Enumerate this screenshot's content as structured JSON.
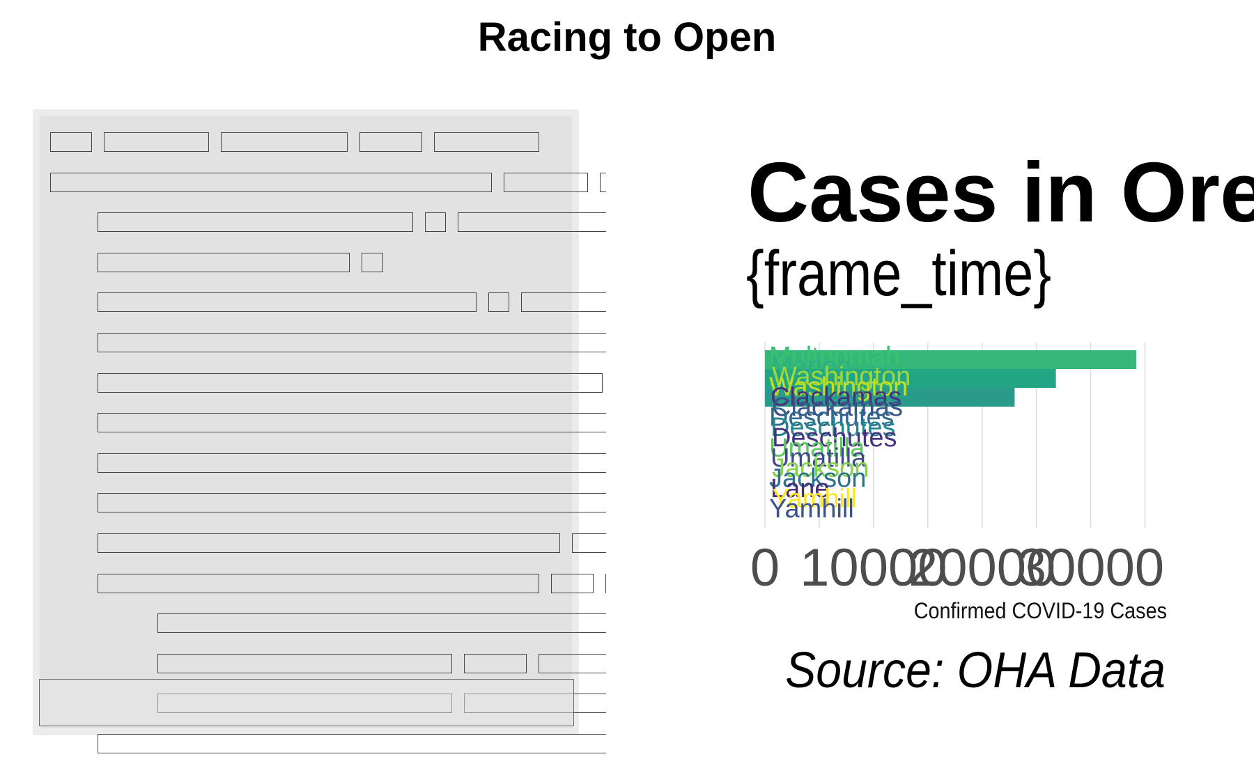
{
  "page_title": "Racing to Open",
  "code_panel": {
    "lines": [
      {
        "indent": 0,
        "tokens": [
          2,
          5,
          6,
          3,
          5
        ]
      },
      {
        "indent": 0,
        "tokens": [
          21,
          4,
          21
        ]
      },
      {
        "indent": 1,
        "tokens": [
          15,
          1,
          8,
          1,
          1,
          3
        ]
      },
      {
        "indent": 1,
        "tokens": [
          12,
          1
        ]
      },
      {
        "indent": 1,
        "tokens": [
          18,
          1,
          9,
          1
        ]
      },
      {
        "indent": 1,
        "tokens": [
          36
        ]
      },
      {
        "indent": 1,
        "tokens": [
          24,
          1
        ]
      },
      {
        "indent": 1,
        "tokens": [
          27,
          1
        ]
      },
      {
        "indent": 1,
        "tokens": [
          27,
          1
        ]
      },
      {
        "indent": 1,
        "tokens": [
          29,
          1
        ]
      },
      {
        "indent": 1,
        "tokens": [
          22,
          11
        ]
      },
      {
        "indent": 1,
        "tokens": [
          21,
          2,
          6,
          1
        ]
      },
      {
        "indent": 2,
        "tokens": [
          32
        ]
      },
      {
        "indent": 2,
        "tokens": [
          14,
          3,
          5
        ]
      },
      {
        "indent": 2,
        "tokens": [
          14,
          10,
          3
        ]
      },
      {
        "indent": 1,
        "tokens": [
          36
        ]
      }
    ]
  },
  "chart_data": {
    "type": "bar",
    "orientation": "horizontal",
    "title": "Cases in Oreg",
    "subtitle": "{frame_time}",
    "xlabel": "Confirmed COVID-19 Cases",
    "caption": "Source: OHA Data",
    "xlim": [
      0,
      36000
    ],
    "xticks": [
      0,
      10000,
      20000,
      30000
    ],
    "xtick_labels": [
      "0",
      "10000",
      "20000",
      "30000"
    ],
    "grid": "vertical",
    "legend": "none",
    "bars": [
      {
        "label": "Multnomah",
        "value": 34200,
        "color": "#35b779"
      },
      {
        "label": "Marion",
        "value": 26800,
        "color": "#21a585"
      },
      {
        "label": "Washington",
        "value": 23000,
        "color": "#2a9a8a"
      }
    ],
    "state_labels": [
      {
        "label": "Multnomah",
        "color": "#3ac26f"
      },
      {
        "label": "Marion",
        "color": "#2bb07f"
      },
      {
        "label": "Washington",
        "color": "#9dd93a"
      },
      {
        "label": "Washington",
        "color": "#c2df23"
      },
      {
        "label": "Clackamas",
        "color": "#46327e"
      },
      {
        "label": "Clackamas",
        "color": "#3b518b"
      },
      {
        "label": "Deschutes",
        "color": "#31688e"
      },
      {
        "label": "Deschutes",
        "color": "#24868e"
      },
      {
        "label": "Deschutes",
        "color": "#46327e"
      },
      {
        "label": "Umatilla",
        "color": "#5ec962"
      },
      {
        "label": "Umatilla",
        "color": "#3e4a89"
      },
      {
        "label": "Jackson",
        "color": "#84d44b"
      },
      {
        "label": "Jackson",
        "color": "#2c728e"
      },
      {
        "label": "Lane",
        "color": "#472c7a"
      },
      {
        "label": "Yamhill",
        "color": "#fde725"
      },
      {
        "label": "Yamhill",
        "color": "#3b528b"
      }
    ]
  }
}
